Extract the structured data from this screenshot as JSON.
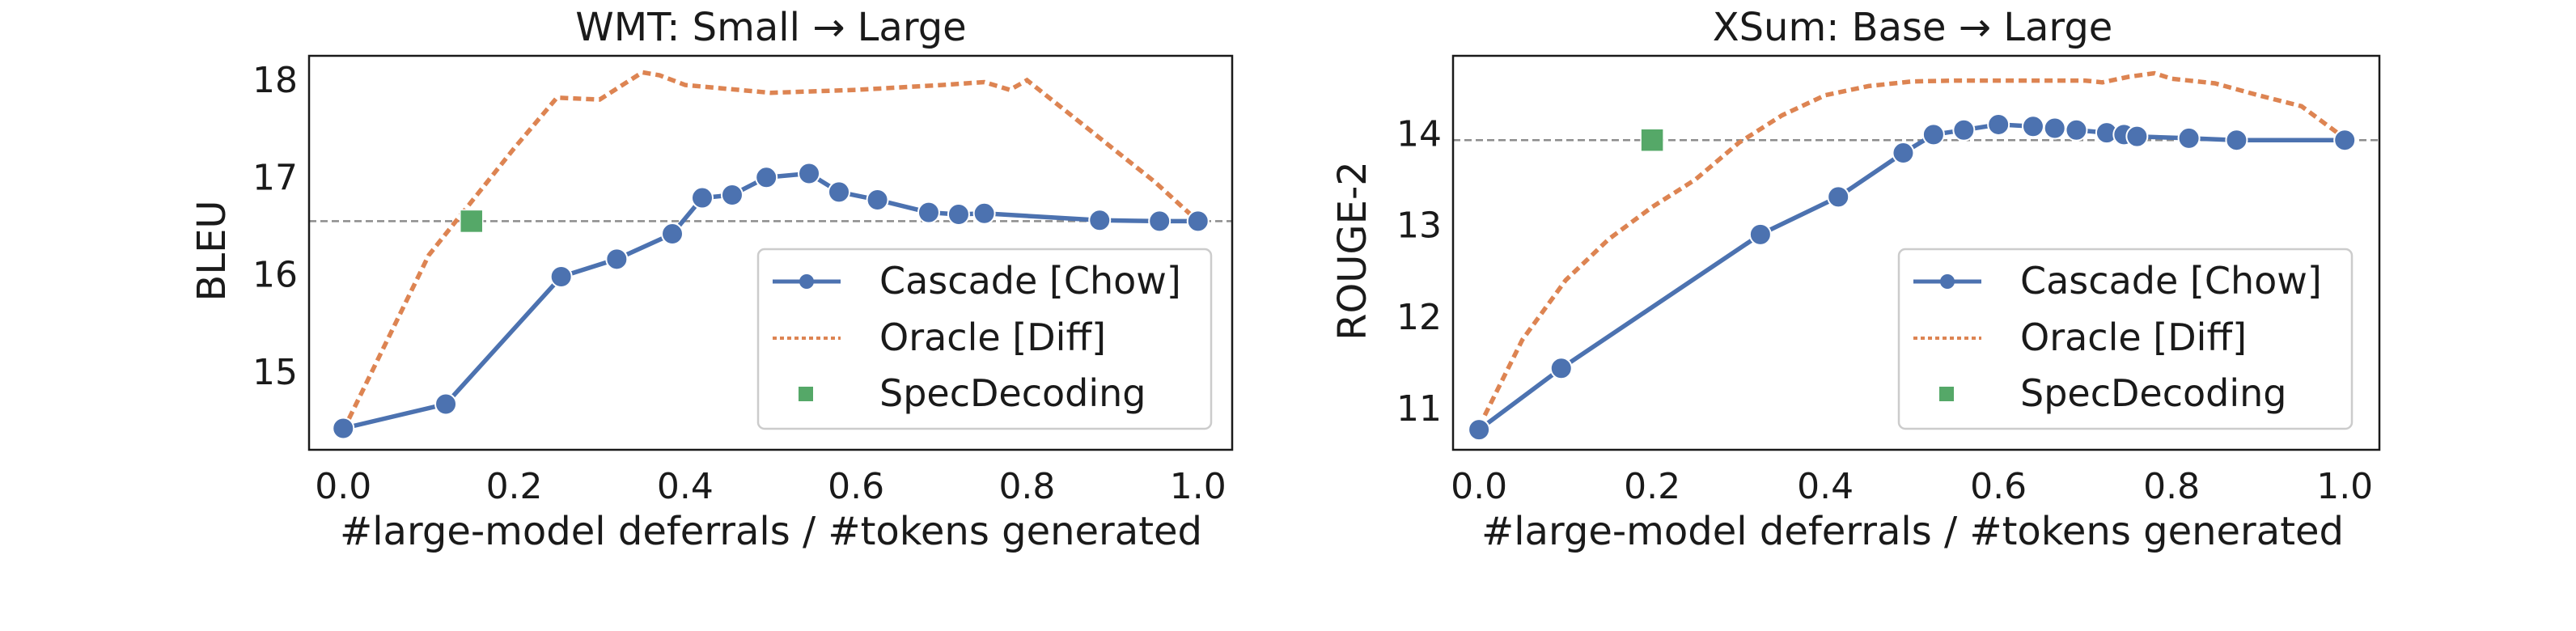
{
  "chart_data": [
    {
      "type": "line",
      "title": "WMT:  Small → Large",
      "xlabel": "#large-model deferrals / #tokens generated",
      "ylabel": "BLEU",
      "xlim": [
        -0.04,
        1.04
      ],
      "ylim": [
        14.2,
        18.25
      ],
      "xticks": [
        0.0,
        0.2,
        0.4,
        0.6,
        0.8,
        1.0
      ],
      "xtick_labels": [
        "0.0",
        "0.2",
        "0.4",
        "0.6",
        "0.8",
        "1.0"
      ],
      "yticks": [
        15,
        16,
        17,
        18
      ],
      "ytick_labels": [
        "15",
        "16",
        "17",
        "18"
      ],
      "grid": false,
      "legend_position": "lower-right",
      "reference_line_y": 16.55,
      "series": [
        {
          "name": "Cascade [Chow]",
          "style": "solid-markers",
          "color": "#4c72b0",
          "x": [
            0.0,
            0.12,
            0.255,
            0.32,
            0.385,
            0.42,
            0.455,
            0.495,
            0.545,
            0.58,
            0.625,
            0.685,
            0.72,
            0.75,
            0.885,
            0.955,
            1.0
          ],
          "y": [
            14.42,
            14.67,
            15.98,
            16.16,
            16.42,
            16.79,
            16.82,
            17.0,
            17.04,
            16.85,
            16.77,
            16.64,
            16.62,
            16.63,
            16.56,
            16.55,
            16.55
          ]
        },
        {
          "name": "Oracle [Diff]",
          "style": "dotted",
          "color": "#dd8452",
          "x": [
            0.0,
            0.05,
            0.1,
            0.15,
            0.2,
            0.25,
            0.3,
            0.35,
            0.37,
            0.4,
            0.5,
            0.6,
            0.7,
            0.75,
            0.78,
            0.8,
            0.85,
            0.9,
            0.95,
            1.0
          ],
          "y": [
            14.4,
            15.3,
            16.2,
            16.75,
            17.3,
            17.82,
            17.8,
            18.08,
            18.05,
            17.95,
            17.87,
            17.9,
            17.95,
            17.98,
            17.9,
            18.0,
            17.65,
            17.3,
            16.95,
            16.55
          ]
        },
        {
          "name": "SpecDecoding",
          "style": "square-marker",
          "color": "#55a868",
          "x": [
            0.15
          ],
          "y": [
            16.55
          ]
        }
      ]
    },
    {
      "type": "line",
      "title": "XSum:  Base → Large",
      "xlabel": "#large-model deferrals / #tokens generated",
      "ylabel": "ROUGE-2",
      "xlim": [
        -0.03,
        1.04
      ],
      "ylim": [
        10.55,
        14.85
      ],
      "xticks": [
        0.0,
        0.2,
        0.4,
        0.6,
        0.8,
        1.0
      ],
      "xtick_labels": [
        "0.0",
        "0.2",
        "0.4",
        "0.6",
        "0.8",
        "1.0"
      ],
      "yticks": [
        11,
        12,
        13,
        14
      ],
      "ytick_labels": [
        "11",
        "12",
        "13",
        "14"
      ],
      "grid": false,
      "legend_position": "lower-right",
      "reference_line_y": 13.93,
      "series": [
        {
          "name": "Cascade [Chow]",
          "style": "solid-markers",
          "color": "#4c72b0",
          "x": [
            0.0,
            0.095,
            0.325,
            0.415,
            0.49,
            0.525,
            0.56,
            0.6,
            0.64,
            0.665,
            0.69,
            0.725,
            0.745,
            0.76,
            0.82,
            0.875,
            1.0
          ],
          "y": [
            10.77,
            11.44,
            12.9,
            13.31,
            13.79,
            13.99,
            14.04,
            14.1,
            14.08,
            14.06,
            14.04,
            14.01,
            13.99,
            13.97,
            13.95,
            13.93,
            13.93
          ]
        },
        {
          "name": "Oracle [Diff]",
          "style": "dotted",
          "color": "#dd8452",
          "x": [
            0.0,
            0.05,
            0.1,
            0.15,
            0.2,
            0.25,
            0.3,
            0.35,
            0.4,
            0.45,
            0.5,
            0.55,
            0.6,
            0.65,
            0.7,
            0.72,
            0.75,
            0.78,
            0.8,
            0.85,
            0.9,
            0.95,
            1.0
          ],
          "y": [
            10.8,
            11.75,
            12.4,
            12.85,
            13.2,
            13.5,
            13.9,
            14.2,
            14.42,
            14.52,
            14.57,
            14.58,
            14.58,
            14.58,
            14.58,
            14.56,
            14.62,
            14.66,
            14.6,
            14.55,
            14.42,
            14.3,
            13.95
          ]
        },
        {
          "name": "SpecDecoding",
          "style": "square-marker",
          "color": "#55a868",
          "x": [
            0.2
          ],
          "y": [
            13.93
          ]
        }
      ]
    }
  ]
}
